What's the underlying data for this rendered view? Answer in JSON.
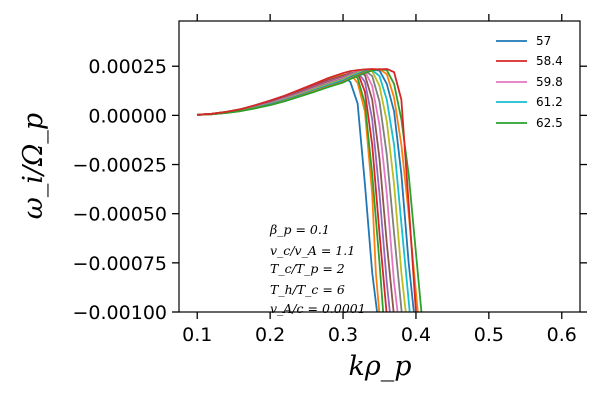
{
  "chart_data": {
    "type": "line",
    "title": "",
    "xlabel": "kρ_p",
    "ylabel": "ω_i/Ω_p",
    "xlim": [
      0.075,
      0.625
    ],
    "ylim": [
      -0.001,
      0.00048
    ],
    "x_ticks": [
      0.1,
      0.2,
      0.3,
      0.4,
      0.5,
      0.6
    ],
    "x_tick_labels": [
      "0.1",
      "0.2",
      "0.3",
      "0.4",
      "0.5",
      "0.6"
    ],
    "y_ticks": [
      0.00025,
      0.0,
      -0.00025,
      -0.0005,
      -0.00075,
      -0.001
    ],
    "y_tick_labels": [
      "0.00025",
      "0.00000",
      "−0.00025",
      "−0.00050",
      "−0.00075",
      "−0.00100"
    ],
    "grid": false,
    "legend_position": "top-right",
    "legend": [
      {
        "label": "57",
        "color": "#1f77b4"
      },
      {
        "label": "58.4",
        "color": "#d62728"
      },
      {
        "label": "59.8",
        "color": "#e377c2"
      },
      {
        "label": "61.2",
        "color": "#17becf"
      },
      {
        "label": "62.5",
        "color": "#2ca02c"
      }
    ],
    "series": [
      {
        "color": "#1f77b4",
        "x": [
          0.1,
          0.12,
          0.14,
          0.16,
          0.18,
          0.2,
          0.22,
          0.24,
          0.26,
          0.28,
          0.3,
          0.31,
          0.32,
          0.33,
          0.34,
          0.35
        ],
        "y": [
          3e-06,
          8e-06,
          1.8e-05,
          3.2e-05,
          5.2e-05,
          7.5e-05,
          0.0001,
          0.000128,
          0.000158,
          0.000188,
          0.0002,
          0.00017,
          6e-05,
          -0.00035,
          -0.0008,
          -0.0011
        ]
      },
      {
        "color": "#ff7f0e",
        "x": [
          0.1,
          0.12,
          0.14,
          0.16,
          0.18,
          0.2,
          0.22,
          0.24,
          0.26,
          0.28,
          0.3,
          0.31,
          0.32,
          0.33,
          0.34,
          0.345,
          0.352
        ],
        "y": [
          3e-06,
          8e-06,
          1.8e-05,
          3.2e-05,
          5e-05,
          7.2e-05,
          9.8e-05,
          0.000126,
          0.000155,
          0.000183,
          0.000205,
          0.00021,
          0.000165,
          2e-05,
          -0.0004,
          -0.0008,
          -0.0011
        ]
      },
      {
        "color": "#2ca02c",
        "x": [
          0.1,
          0.12,
          0.14,
          0.16,
          0.18,
          0.2,
          0.22,
          0.24,
          0.26,
          0.28,
          0.3,
          0.31,
          0.32,
          0.33,
          0.34,
          0.35,
          0.357
        ],
        "y": [
          3e-06,
          8e-06,
          1.8e-05,
          3.1e-05,
          4.9e-05,
          7e-05,
          9.5e-05,
          0.000123,
          0.000152,
          0.00018,
          0.000202,
          0.000215,
          0.00019,
          6e-05,
          -0.0003,
          -0.00075,
          -0.0011
        ]
      },
      {
        "color": "#d62728",
        "x": [
          0.1,
          0.12,
          0.14,
          0.16,
          0.18,
          0.2,
          0.22,
          0.24,
          0.26,
          0.28,
          0.3,
          0.31,
          0.32,
          0.33,
          0.34,
          0.35,
          0.362
        ],
        "y": [
          3e-06,
          8e-06,
          1.7e-05,
          3e-05,
          4.7e-05,
          6.8e-05,
          9.2e-05,
          0.00012,
          0.00015,
          0.000178,
          0.0002,
          0.000215,
          0.000218,
          0.00012,
          -0.00015,
          -0.0006,
          -0.0011
        ]
      },
      {
        "color": "#9467bd",
        "x": [
          0.1,
          0.12,
          0.14,
          0.16,
          0.18,
          0.2,
          0.22,
          0.24,
          0.26,
          0.28,
          0.3,
          0.31,
          0.32,
          0.33,
          0.34,
          0.35,
          0.36,
          0.367
        ],
        "y": [
          3e-06,
          7e-06,
          1.6e-05,
          2.9e-05,
          4.6e-05,
          6.6e-05,
          9e-05,
          0.000117,
          0.000146,
          0.000174,
          0.000196,
          0.000212,
          0.000222,
          0.00017,
          -2e-05,
          -0.0004,
          -0.00085,
          -0.0011
        ]
      },
      {
        "color": "#8c564b",
        "x": [
          0.1,
          0.12,
          0.14,
          0.16,
          0.18,
          0.2,
          0.22,
          0.24,
          0.26,
          0.28,
          0.3,
          0.31,
          0.32,
          0.33,
          0.34,
          0.35,
          0.36,
          0.372
        ],
        "y": [
          3e-06,
          7e-06,
          1.6e-05,
          2.8e-05,
          4.5e-05,
          6.4e-05,
          8.7e-05,
          0.000114,
          0.000142,
          0.00017,
          0.000193,
          0.00021,
          0.000223,
          0.000205,
          8e-05,
          -0.00022,
          -0.00065,
          -0.0011
        ]
      },
      {
        "color": "#e377c2",
        "x": [
          0.1,
          0.12,
          0.14,
          0.16,
          0.18,
          0.2,
          0.22,
          0.24,
          0.26,
          0.28,
          0.3,
          0.31,
          0.32,
          0.33,
          0.34,
          0.35,
          0.36,
          0.37,
          0.378
        ],
        "y": [
          3e-06,
          7e-06,
          1.5e-05,
          2.7e-05,
          4.3e-05,
          6.2e-05,
          8.5e-05,
          0.000111,
          0.000138,
          0.000166,
          0.00019,
          0.000207,
          0.000222,
          0.000225,
          0.00015,
          -5e-05,
          -0.0004,
          -0.00085,
          -0.0011
        ]
      },
      {
        "color": "#7f7f7f",
        "x": [
          0.1,
          0.12,
          0.14,
          0.16,
          0.18,
          0.2,
          0.22,
          0.24,
          0.26,
          0.28,
          0.3,
          0.31,
          0.32,
          0.33,
          0.34,
          0.35,
          0.36,
          0.37,
          0.383
        ],
        "y": [
          3e-06,
          7e-06,
          1.5e-05,
          2.6e-05,
          4.2e-05,
          6e-05,
          8.2e-05,
          0.000108,
          0.000135,
          0.000162,
          0.000186,
          0.000204,
          0.000219,
          0.000228,
          0.0002,
          7e-05,
          -0.0002,
          -0.0006,
          -0.0011
        ]
      },
      {
        "color": "#bcbd22",
        "x": [
          0.1,
          0.12,
          0.14,
          0.16,
          0.18,
          0.2,
          0.22,
          0.24,
          0.26,
          0.28,
          0.3,
          0.31,
          0.32,
          0.33,
          0.34,
          0.35,
          0.36,
          0.37,
          0.38,
          0.389
        ],
        "y": [
          3e-06,
          6e-06,
          1.4e-05,
          2.5e-05,
          4e-05,
          5.8e-05,
          8e-05,
          0.000105,
          0.000132,
          0.000158,
          0.000182,
          0.0002,
          0.000216,
          0.000228,
          0.000225,
          0.00015,
          -3e-05,
          -0.00035,
          -0.0008,
          -0.0011
        ]
      },
      {
        "color": "#17becf",
        "x": [
          0.1,
          0.12,
          0.14,
          0.16,
          0.18,
          0.2,
          0.22,
          0.24,
          0.26,
          0.28,
          0.3,
          0.31,
          0.32,
          0.33,
          0.34,
          0.35,
          0.36,
          0.37,
          0.38,
          0.394
        ],
        "y": [
          3e-06,
          6e-06,
          1.4e-05,
          2.4e-05,
          3.9e-05,
          5.7e-05,
          7.8e-05,
          0.000102,
          0.000128,
          0.000154,
          0.000178,
          0.000196,
          0.000212,
          0.000225,
          0.00023,
          0.0002,
          8e-05,
          -0.00015,
          -0.00055,
          -0.0011
        ]
      },
      {
        "color": "#1f77b4",
        "x": [
          0.1,
          0.12,
          0.14,
          0.16,
          0.18,
          0.2,
          0.22,
          0.24,
          0.26,
          0.28,
          0.3,
          0.31,
          0.32,
          0.33,
          0.34,
          0.35,
          0.36,
          0.37,
          0.38,
          0.39,
          0.4
        ],
        "y": [
          3e-06,
          6e-06,
          1.3e-05,
          2.3e-05,
          3.8e-05,
          5.5e-05,
          7.6e-05,
          0.0001,
          0.000125,
          0.00015,
          0.000174,
          0.000192,
          0.000208,
          0.000222,
          0.000232,
          0.000228,
          0.00016,
          2e-05,
          -0.0003,
          -0.00075,
          -0.0011
        ]
      },
      {
        "color": "#ff7f0e",
        "x": [
          0.1,
          0.12,
          0.14,
          0.16,
          0.18,
          0.2,
          0.22,
          0.24,
          0.26,
          0.28,
          0.3,
          0.31,
          0.32,
          0.33,
          0.34,
          0.35,
          0.36,
          0.37,
          0.38,
          0.39,
          0.4,
          0.405
        ],
        "y": [
          3e-06,
          6e-06,
          1.3e-05,
          2.3e-05,
          3.7e-05,
          5.3e-05,
          7.4e-05,
          9.7e-05,
          0.000122,
          0.000147,
          0.00017,
          0.000188,
          0.000205,
          0.000219,
          0.00023,
          0.000235,
          0.00021,
          9e-05,
          -0.00015,
          -0.0005,
          -0.0009,
          -0.0011
        ]
      },
      {
        "color": "#2ca02c",
        "x": [
          0.1,
          0.12,
          0.14,
          0.16,
          0.18,
          0.2,
          0.22,
          0.24,
          0.26,
          0.28,
          0.3,
          0.31,
          0.32,
          0.33,
          0.34,
          0.35,
          0.36,
          0.37,
          0.38,
          0.39,
          0.4,
          0.41
        ],
        "y": [
          3e-06,
          6e-06,
          1.2e-05,
          2.2e-05,
          3.6e-05,
          5.2e-05,
          7.2e-05,
          9.5e-05,
          0.000119,
          0.000144,
          0.000167,
          0.000185,
          0.000201,
          0.000216,
          0.000228,
          0.000235,
          0.00023,
          0.00016,
          -2e-05,
          -0.0003,
          -0.0007,
          -0.0011
        ]
      },
      {
        "color": "#d62728",
        "x": [
          0.1,
          0.12,
          0.14,
          0.16,
          0.18,
          0.2,
          0.22,
          0.24,
          0.26,
          0.28,
          0.3,
          0.31,
          0.32,
          0.33,
          0.34,
          0.35,
          0.36,
          0.37,
          0.38,
          0.39,
          0.4,
          0.405
        ],
        "y": [
          3e-06,
          8e-06,
          1.8e-05,
          3.2e-05,
          5.2e-05,
          7.5e-05,
          0.0001,
          0.00013,
          0.00016,
          0.00019,
          0.000215,
          0.000225,
          0.00023,
          0.000234,
          0.000236,
          0.000234,
          0.000236,
          0.00022,
          8e-05,
          -0.00045,
          -0.001,
          -0.0011
        ]
      }
    ],
    "annotations": [
      "β_p = 0.1",
      "v_c/v_A = 1.1",
      "T_c/T_p = 2",
      "T_h/T_c = 6",
      "v_A/c = 0.0001"
    ]
  }
}
